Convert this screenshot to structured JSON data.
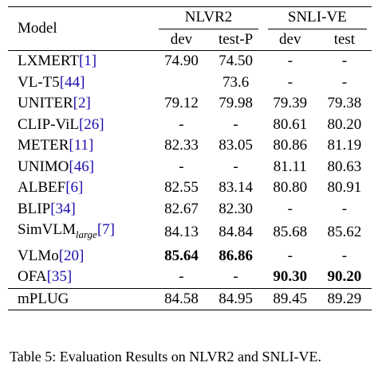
{
  "table": {
    "header": {
      "model_label": "Model",
      "groups": [
        {
          "name": "NLVR2",
          "columns": [
            "dev",
            "test-P"
          ]
        },
        {
          "name": "SNLI-VE",
          "columns": [
            "dev",
            "test"
          ]
        }
      ]
    },
    "rows": [
      {
        "model": "LXMERT",
        "cite": "[1]",
        "sub": "",
        "after": "",
        "values": [
          "74.90",
          "74.50",
          "-",
          "-"
        ],
        "bold": [
          false,
          false,
          false,
          false
        ]
      },
      {
        "model": "VL-T5",
        "cite": "[44]",
        "sub": "",
        "after": "",
        "values": [
          "",
          "73.6",
          "-",
          "-"
        ],
        "bold": [
          false,
          false,
          false,
          false
        ]
      },
      {
        "model": "UNITER",
        "cite": "[2]",
        "sub": "",
        "after": "",
        "values": [
          "79.12",
          "79.98",
          "79.39",
          "79.38"
        ],
        "bold": [
          false,
          false,
          false,
          false
        ]
      },
      {
        "model": "CLIP-ViL",
        "cite": "[26]",
        "sub": "",
        "after": "",
        "values": [
          "-",
          "-",
          "80.61",
          "80.20"
        ],
        "bold": [
          false,
          false,
          false,
          false
        ]
      },
      {
        "model": "METER",
        "cite": "[11]",
        "sub": "",
        "after": "",
        "values": [
          "82.33",
          "83.05",
          "80.86",
          "81.19"
        ],
        "bold": [
          false,
          false,
          false,
          false
        ]
      },
      {
        "model": "UNIMO",
        "cite": "[46]",
        "sub": "",
        "after": "",
        "values": [
          "-",
          "-",
          "81.11",
          "80.63"
        ],
        "bold": [
          false,
          false,
          false,
          false
        ]
      },
      {
        "model": "ALBEF",
        "cite": "[6]",
        "sub": "",
        "after": "",
        "values": [
          "82.55",
          "83.14",
          "80.80",
          "80.91"
        ],
        "bold": [
          false,
          false,
          false,
          false
        ]
      },
      {
        "model": "BLIP",
        "cite": "[34]",
        "sub": "",
        "after": "",
        "values": [
          "82.67",
          "82.30",
          "-",
          "-"
        ],
        "bold": [
          false,
          false,
          false,
          false
        ]
      },
      {
        "model": "SimVLM",
        "cite": "[7]",
        "sub": "large",
        "after": "",
        "values": [
          "84.13",
          "84.84",
          "85.68",
          "85.62"
        ],
        "bold": [
          false,
          false,
          false,
          false
        ]
      },
      {
        "model": "VLMo",
        "cite": "[20]",
        "sub": "",
        "after": "",
        "values": [
          "85.64",
          "86.86",
          "-",
          "-"
        ],
        "bold": [
          true,
          true,
          false,
          false
        ]
      },
      {
        "model": "OFA",
        "cite": "[35]",
        "sub": "",
        "after": "",
        "values": [
          "-",
          "-",
          "90.30",
          "90.20"
        ],
        "bold": [
          false,
          false,
          true,
          true
        ]
      }
    ],
    "final_row": {
      "model": "mPLUG",
      "values": [
        "84.58",
        "84.95",
        "89.45",
        "89.29"
      ]
    }
  },
  "caption": "Table 5: Evaluation Results on NLVR2 and SNLI-VE."
}
